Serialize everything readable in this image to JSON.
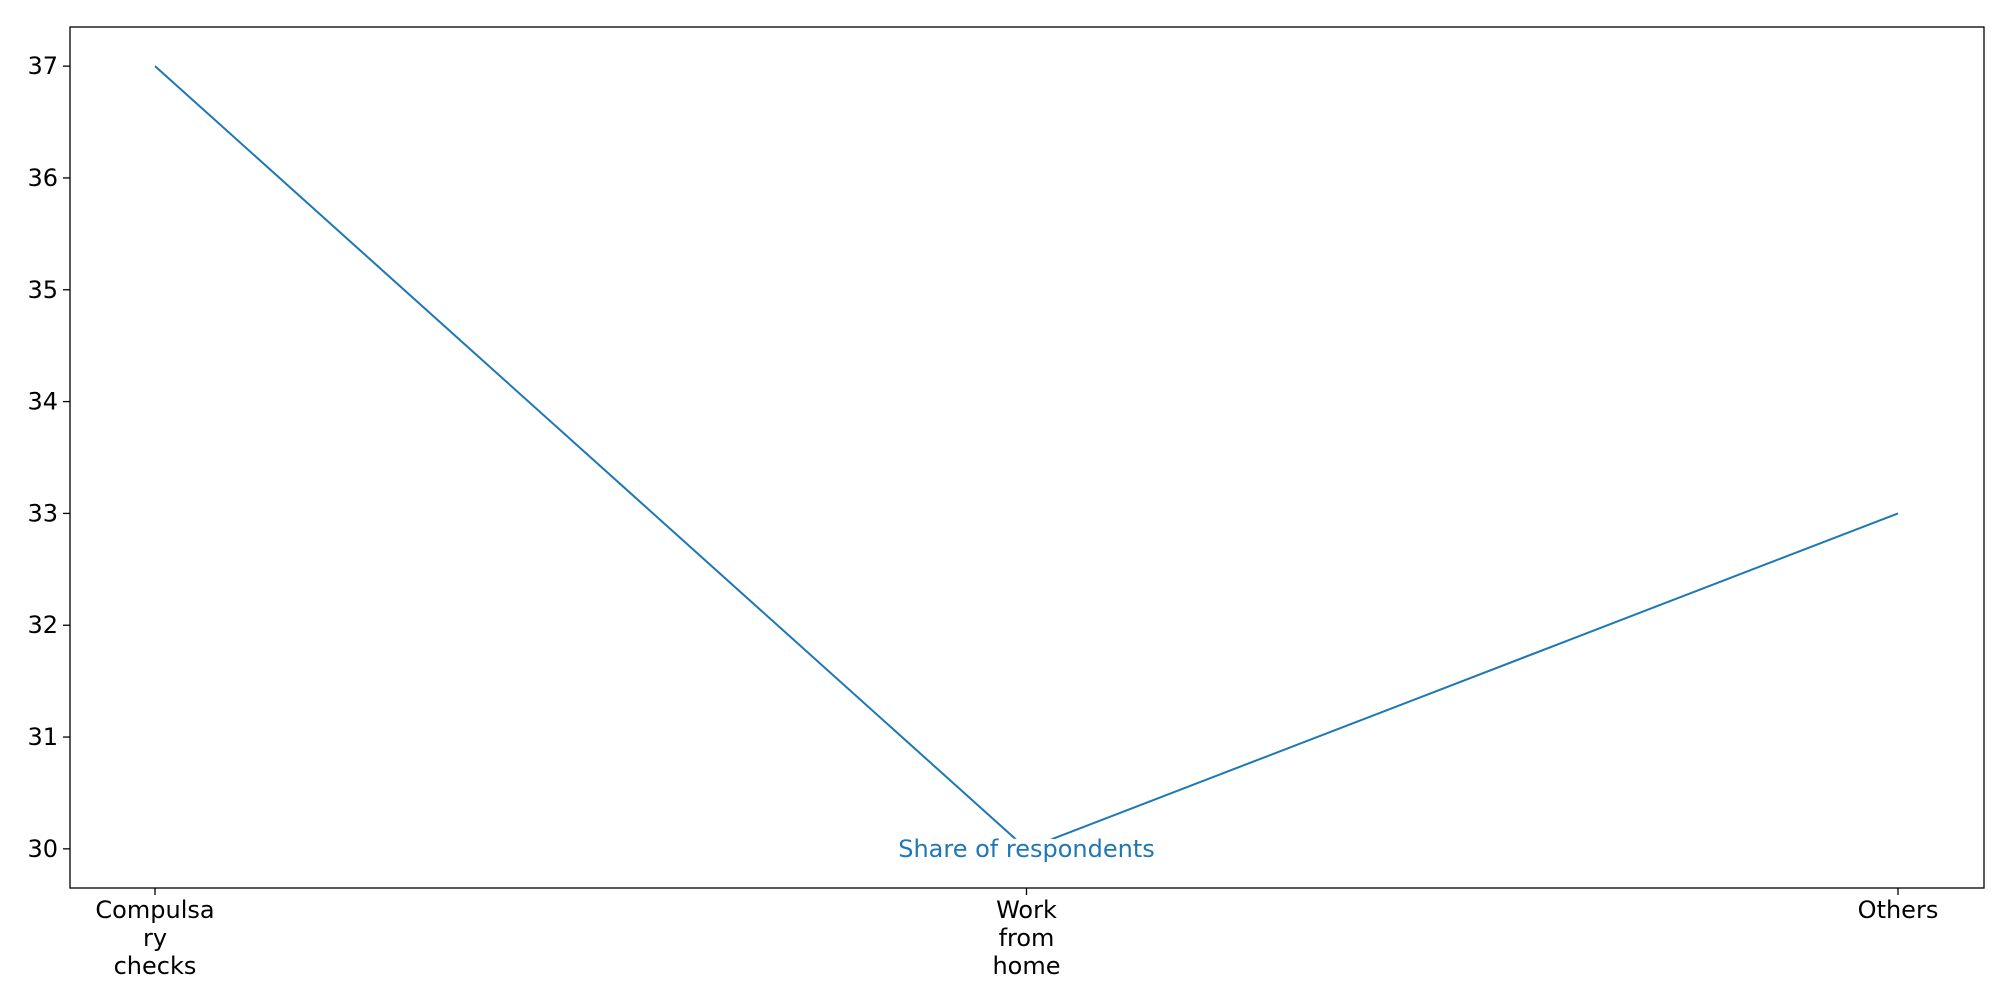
{
  "chart_data": {
    "type": "line",
    "title": "",
    "xlabel": "",
    "ylabel": "",
    "categories": [
      [
        "Compulsa",
        "ry",
        "checks"
      ],
      [
        "Work",
        "from",
        "home"
      ],
      [
        "Others"
      ]
    ],
    "series": [
      {
        "values": [
          37,
          30,
          33
        ]
      }
    ],
    "ylim": [
      29.65,
      37.35
    ],
    "yticks": [
      30,
      31,
      32,
      33,
      34,
      35,
      36,
      37
    ],
    "annotations": [
      {
        "text": "Share of respondents",
        "category_index": 1,
        "value": 30
      }
    ],
    "colors": {
      "series": "#1f77b4",
      "axis": "#000000",
      "background": "#ffffff"
    },
    "grid": false,
    "legend": "none"
  }
}
